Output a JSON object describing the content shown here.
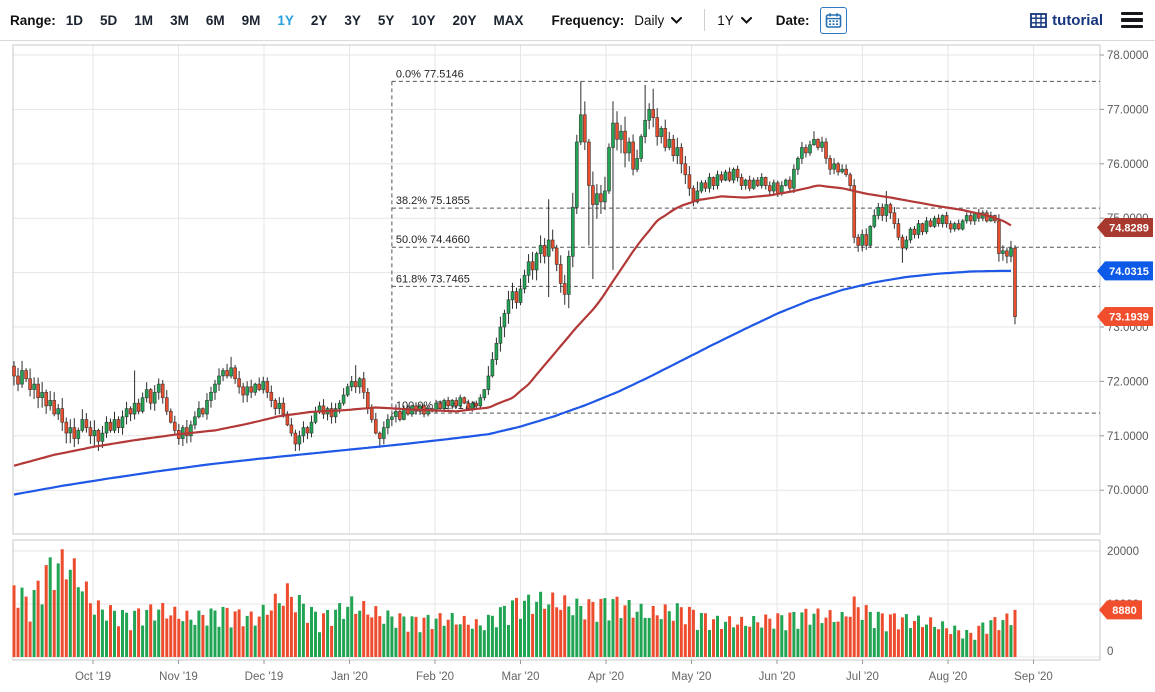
{
  "toolbar": {
    "range_label": "Range:",
    "range_items": [
      "1D",
      "5D",
      "1M",
      "3M",
      "6M",
      "9M",
      "1Y",
      "2Y",
      "3Y",
      "5Y",
      "10Y",
      "20Y",
      "MAX"
    ],
    "range_active": "1Y",
    "frequency_label": "Frequency:",
    "frequency_value": "Daily",
    "period_value": "1Y",
    "date_label": "Date:",
    "brand": "tutorial"
  },
  "chart": {
    "colors": {
      "candle_up": "#23a455",
      "candle_down": "#e94e2d",
      "volume_up": "#21a453",
      "volume_down": "#ee4c2e",
      "ma_fast": "#b23937",
      "ma_slow": "#1f57e7",
      "grid": "#e6e6e6",
      "plot_border": "#c8c8c8",
      "axis_text": "#5a5a5a",
      "fib_line": "#555555",
      "fib_text": "#222222",
      "badge_ma_fast": "#a8392f",
      "badge_ma_slow": "#0d59e8",
      "badge_last": "#f14e2d",
      "badge_volume": "#f14e2d"
    },
    "y_axis_ticks": [
      "78.0000",
      "77.0000",
      "76.0000",
      "75.0000",
      "74.0000",
      "73.0000",
      "72.0000",
      "71.0000",
      "70.0000"
    ],
    "volume_axis_ticks": [
      "20000",
      "10000",
      "0"
    ],
    "x_axis_months": [
      "Oct '19",
      "Nov '19",
      "Dec '19",
      "Jan '20",
      "Feb '20",
      "Mar '20",
      "Apr '20",
      "May '20",
      "Jun '20",
      "Jul '20",
      "Aug '20",
      "Sep '20"
    ],
    "fib_levels": [
      {
        "label": "0.0% 77.5146",
        "value": 77.5146
      },
      {
        "label": "38.2% 75.1855",
        "value": 75.1855
      },
      {
        "label": "50.0% 74.4660",
        "value": 74.466
      },
      {
        "label": "61.8% 73.7465",
        "value": 73.7465
      },
      {
        "label": "100.0% 71.4174",
        "value": 71.4174
      }
    ],
    "fib_anchor_day": 94,
    "price_badges": [
      {
        "name": "ma-fast-price-badge",
        "text": "74.8289",
        "price": 74.8289,
        "color": "#a8392f"
      },
      {
        "name": "ma-slow-price-badge",
        "text": "74.0315",
        "price": 74.0315,
        "color": "#0d59e8"
      },
      {
        "name": "last-price-badge",
        "text": "73.1939",
        "price": 73.1939,
        "color": "#f14e2d"
      }
    ],
    "volume_badge": {
      "name": "last-volume-badge",
      "text": "8880",
      "value": 8880,
      "color": "#f14e2d"
    }
  },
  "chart_data": {
    "type": "candlestick_with_volume",
    "title": "",
    "xlabel": "",
    "ylabel": "",
    "x_range_labels": [
      "Sep 2019",
      "Sep 2020"
    ],
    "ylim": [
      69.2,
      78.2
    ],
    "volume_ylim": [
      0,
      22000
    ],
    "grid": true,
    "legend_position": "none",
    "first_open": 72.28,
    "closes": [
      72.1,
      71.95,
      72.2,
      72.05,
      71.85,
      71.95,
      71.7,
      71.8,
      71.55,
      71.65,
      71.4,
      71.5,
      71.25,
      71.05,
      71.15,
      70.95,
      71.1,
      71.3,
      71.15,
      71.0,
      71.1,
      70.9,
      71.05,
      71.25,
      71.1,
      71.3,
      71.15,
      71.35,
      71.5,
      71.4,
      71.6,
      71.45,
      71.7,
      71.85,
      71.6,
      71.8,
      71.95,
      71.7,
      71.45,
      71.25,
      71.1,
      70.95,
      71.15,
      71.0,
      71.2,
      71.35,
      71.5,
      71.4,
      71.65,
      71.8,
      71.95,
      72.1,
      72.2,
      72.1,
      72.25,
      72.05,
      71.9,
      71.75,
      71.9,
      71.8,
      71.95,
      71.85,
      72.0,
      71.8,
      71.65,
      71.5,
      71.6,
      71.4,
      71.2,
      71.05,
      70.85,
      71.0,
      71.15,
      71.05,
      71.25,
      71.45,
      71.55,
      71.4,
      71.5,
      71.35,
      71.5,
      71.6,
      71.75,
      71.9,
      72.0,
      71.9,
      72.05,
      71.8,
      71.5,
      71.3,
      71.05,
      70.95,
      71.15,
      71.3,
      71.35,
      71.45,
      71.3,
      71.5,
      71.4,
      71.55,
      71.45,
      71.55,
      71.4,
      71.5,
      71.45,
      71.6,
      71.5,
      71.65,
      71.55,
      71.65,
      71.55,
      71.7,
      71.6,
      71.5,
      71.6,
      71.55,
      71.7,
      71.85,
      72.1,
      72.4,
      72.7,
      73.0,
      73.25,
      73.5,
      73.65,
      73.45,
      73.7,
      73.95,
      74.2,
      74.05,
      74.35,
      74.5,
      74.3,
      74.6,
      74.45,
      74.15,
      73.8,
      73.6,
      74.3,
      75.2,
      76.4,
      76.9,
      76.4,
      75.6,
      75.25,
      75.45,
      75.3,
      75.5,
      76.3,
      76.75,
      76.45,
      76.6,
      76.2,
      76.4,
      75.9,
      76.1,
      76.5,
      76.8,
      77.0,
      76.85,
      76.5,
      76.65,
      76.3,
      76.45,
      76.15,
      76.3,
      76.0,
      75.8,
      75.55,
      75.3,
      75.5,
      75.65,
      75.55,
      75.75,
      75.6,
      75.8,
      75.7,
      75.85,
      75.7,
      75.9,
      75.75,
      75.6,
      75.7,
      75.55,
      75.7,
      75.6,
      75.75,
      75.6,
      75.5,
      75.65,
      75.45,
      75.6,
      75.7,
      75.55,
      75.9,
      76.1,
      76.3,
      76.2,
      76.35,
      76.45,
      76.3,
      76.4,
      76.1,
      75.9,
      76.0,
      75.85,
      75.9,
      75.8,
      75.6,
      74.65,
      74.5,
      74.7,
      74.5,
      74.85,
      75.05,
      75.2,
      75.05,
      75.25,
      75.1,
      74.9,
      74.65,
      74.45,
      74.6,
      74.8,
      74.7,
      74.9,
      74.75,
      74.95,
      74.85,
      75.0,
      74.9,
      75.05,
      74.9,
      74.8,
      74.9,
      74.8,
      74.95,
      75.05,
      74.95,
      75.1,
      75.0,
      75.1,
      74.95,
      75.05,
      74.95,
      74.35,
      74.4,
      74.3,
      74.45,
      73.19
    ],
    "wick_overrides": {
      "21": {
        "l": 70.72
      },
      "30": {
        "h": 72.2
      },
      "54": {
        "h": 72.45
      },
      "70": {
        "l": 70.72
      },
      "85": {
        "h": 72.3
      },
      "91": {
        "l": 70.78
      },
      "133": {
        "h": 75.35,
        "l": 73.55
      },
      "141": {
        "h": 77.5146
      },
      "143": {
        "l": 74.5
      },
      "144": {
        "l": 73.88
      },
      "149": {
        "h": 77.15,
        "l": 74.05
      },
      "157": {
        "h": 77.45
      },
      "159": {
        "h": 77.38
      },
      "169": {
        "l": 75.22
      },
      "199": {
        "h": 76.6
      },
      "217": {
        "h": 75.5
      },
      "221": {
        "l": 74.18
      },
      "245": {
        "l": 74.2
      },
      "249": {
        "l": 73.05
      }
    },
    "volatility_regions": [
      [
        0,
        20,
        1.3
      ],
      [
        21,
        60,
        0.95
      ],
      [
        61,
        95,
        0.85
      ],
      [
        96,
        117,
        0.45
      ],
      [
        118,
        137,
        1.3
      ],
      [
        138,
        152,
        1.8
      ],
      [
        153,
        170,
        1.2
      ],
      [
        171,
        193,
        0.55
      ],
      [
        194,
        208,
        0.7
      ],
      [
        209,
        221,
        0.8
      ],
      [
        222,
        244,
        0.5
      ],
      [
        245,
        249,
        0.9
      ]
    ],
    "volume_anchors": [
      [
        0,
        15500
      ],
      [
        4,
        11500
      ],
      [
        8,
        19000
      ],
      [
        13,
        21000
      ],
      [
        16,
        17500
      ],
      [
        20,
        11000
      ],
      [
        28,
        9000
      ],
      [
        36,
        10500
      ],
      [
        44,
        8500
      ],
      [
        52,
        10000
      ],
      [
        60,
        8500
      ],
      [
        68,
        14000
      ],
      [
        76,
        8500
      ],
      [
        84,
        11500
      ],
      [
        92,
        9000
      ],
      [
        100,
        8000
      ],
      [
        108,
        8500
      ],
      [
        116,
        7000
      ],
      [
        124,
        11500
      ],
      [
        132,
        12500
      ],
      [
        141,
        11000
      ],
      [
        149,
        12000
      ],
      [
        158,
        9500
      ],
      [
        166,
        10500
      ],
      [
        174,
        8000
      ],
      [
        182,
        7500
      ],
      [
        190,
        8500
      ],
      [
        198,
        9500
      ],
      [
        206,
        8500
      ],
      [
        209,
        11500
      ],
      [
        214,
        9000
      ],
      [
        220,
        8500
      ],
      [
        228,
        7500
      ],
      [
        234,
        6000
      ],
      [
        238,
        5000
      ],
      [
        242,
        7500
      ],
      [
        246,
        8000
      ],
      [
        249,
        8880
      ]
    ],
    "series": [
      {
        "name": "ma-fast",
        "color": "#b23937",
        "points": [
          [
            0,
            70.45
          ],
          [
            10,
            70.65
          ],
          [
            20,
            70.8
          ],
          [
            30,
            70.92
          ],
          [
            40,
            71.02
          ],
          [
            50,
            71.1
          ],
          [
            58,
            71.22
          ],
          [
            66,
            71.36
          ],
          [
            74,
            71.44
          ],
          [
            82,
            71.47
          ],
          [
            90,
            71.52
          ],
          [
            100,
            71.48
          ],
          [
            110,
            71.45
          ],
          [
            118,
            71.52
          ],
          [
            124,
            71.7
          ],
          [
            128,
            71.95
          ],
          [
            132,
            72.3
          ],
          [
            136,
            72.65
          ],
          [
            140,
            73.0
          ],
          [
            145,
            73.4
          ],
          [
            150,
            73.95
          ],
          [
            155,
            74.5
          ],
          [
            160,
            74.95
          ],
          [
            165,
            75.2
          ],
          [
            170,
            75.33
          ],
          [
            176,
            75.4
          ],
          [
            182,
            75.38
          ],
          [
            188,
            75.42
          ],
          [
            194,
            75.5
          ],
          [
            200,
            75.6
          ],
          [
            206,
            75.55
          ],
          [
            212,
            75.45
          ],
          [
            218,
            75.38
          ],
          [
            224,
            75.3
          ],
          [
            230,
            75.22
          ],
          [
            236,
            75.15
          ],
          [
            242,
            75.05
          ],
          [
            246,
            74.95
          ],
          [
            249,
            74.8289
          ]
        ]
      },
      {
        "name": "ma-slow",
        "color": "#1f57e7",
        "points": [
          [
            0,
            69.92
          ],
          [
            12,
            70.08
          ],
          [
            24,
            70.22
          ],
          [
            36,
            70.35
          ],
          [
            48,
            70.47
          ],
          [
            60,
            70.57
          ],
          [
            72,
            70.66
          ],
          [
            84,
            70.75
          ],
          [
            96,
            70.84
          ],
          [
            108,
            70.94
          ],
          [
            118,
            71.03
          ],
          [
            126,
            71.17
          ],
          [
            134,
            71.35
          ],
          [
            142,
            71.56
          ],
          [
            150,
            71.8
          ],
          [
            158,
            72.08
          ],
          [
            166,
            72.38
          ],
          [
            174,
            72.68
          ],
          [
            182,
            72.97
          ],
          [
            190,
            73.25
          ],
          [
            198,
            73.49
          ],
          [
            206,
            73.68
          ],
          [
            214,
            73.82
          ],
          [
            222,
            73.92
          ],
          [
            230,
            73.98
          ],
          [
            238,
            74.02
          ],
          [
            244,
            74.03
          ],
          [
            249,
            74.0315
          ]
        ]
      }
    ]
  }
}
